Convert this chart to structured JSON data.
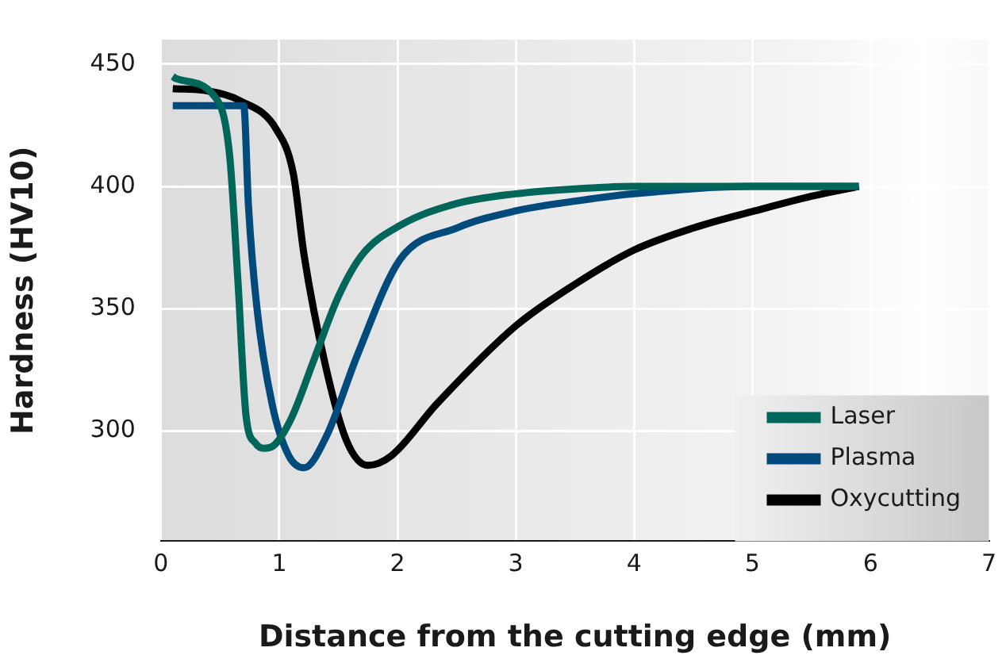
{
  "chart_data": {
    "type": "line",
    "xlabel": "Distance from the cutting edge (mm)",
    "ylabel": "Hardness (HV10)",
    "xlim": [
      0,
      7
    ],
    "xticks": [
      0,
      1,
      2,
      3,
      4,
      5,
      6,
      7
    ],
    "ylim": [
      255,
      460
    ],
    "yticks": [
      300,
      350,
      400,
      450
    ],
    "grid": true,
    "legend": "bottom right",
    "marker": "none",
    "line_style": "solid",
    "series": [
      {
        "name": "Laser",
        "color": "#00665a",
        "x": [
          0.1,
          0.13,
          0.45,
          0.58,
          0.65,
          0.72,
          0.8,
          0.87,
          0.95,
          1.1,
          1.3,
          1.5,
          1.7,
          2.02,
          2.5,
          3.0,
          3.5,
          4.0,
          5.0,
          5.9
        ],
        "values": [
          445,
          444,
          437,
          413,
          362,
          306,
          295,
          293,
          294,
          305,
          330,
          355,
          372,
          384,
          393,
          397,
          399,
          400,
          400,
          400
        ]
      },
      {
        "name": "Plasma",
        "color": "#004a7c",
        "x": [
          0.1,
          0.7,
          0.74,
          0.81,
          0.94,
          1.08,
          1.21,
          1.4,
          1.66,
          2.02,
          2.5,
          3.0,
          3.5,
          4.0,
          5.0,
          5.9
        ],
        "values": [
          433,
          433,
          392,
          351,
          311,
          290,
          285,
          298,
          331,
          370,
          383,
          390,
          394,
          397,
          400,
          400
        ]
      },
      {
        "name": "Oxycutting",
        "color": "#000000",
        "x": [
          0.1,
          0.4,
          0.67,
          0.98,
          1.12,
          1.21,
          1.39,
          1.57,
          1.75,
          1.95,
          2.33,
          3.0,
          3.5,
          4.0,
          4.5,
          5.02,
          5.5,
          5.9
        ],
        "values": [
          440,
          439,
          435,
          423,
          405,
          372,
          327,
          296,
          286,
          290,
          311,
          343,
          360,
          374,
          383,
          390,
          396,
          400
        ]
      }
    ]
  }
}
